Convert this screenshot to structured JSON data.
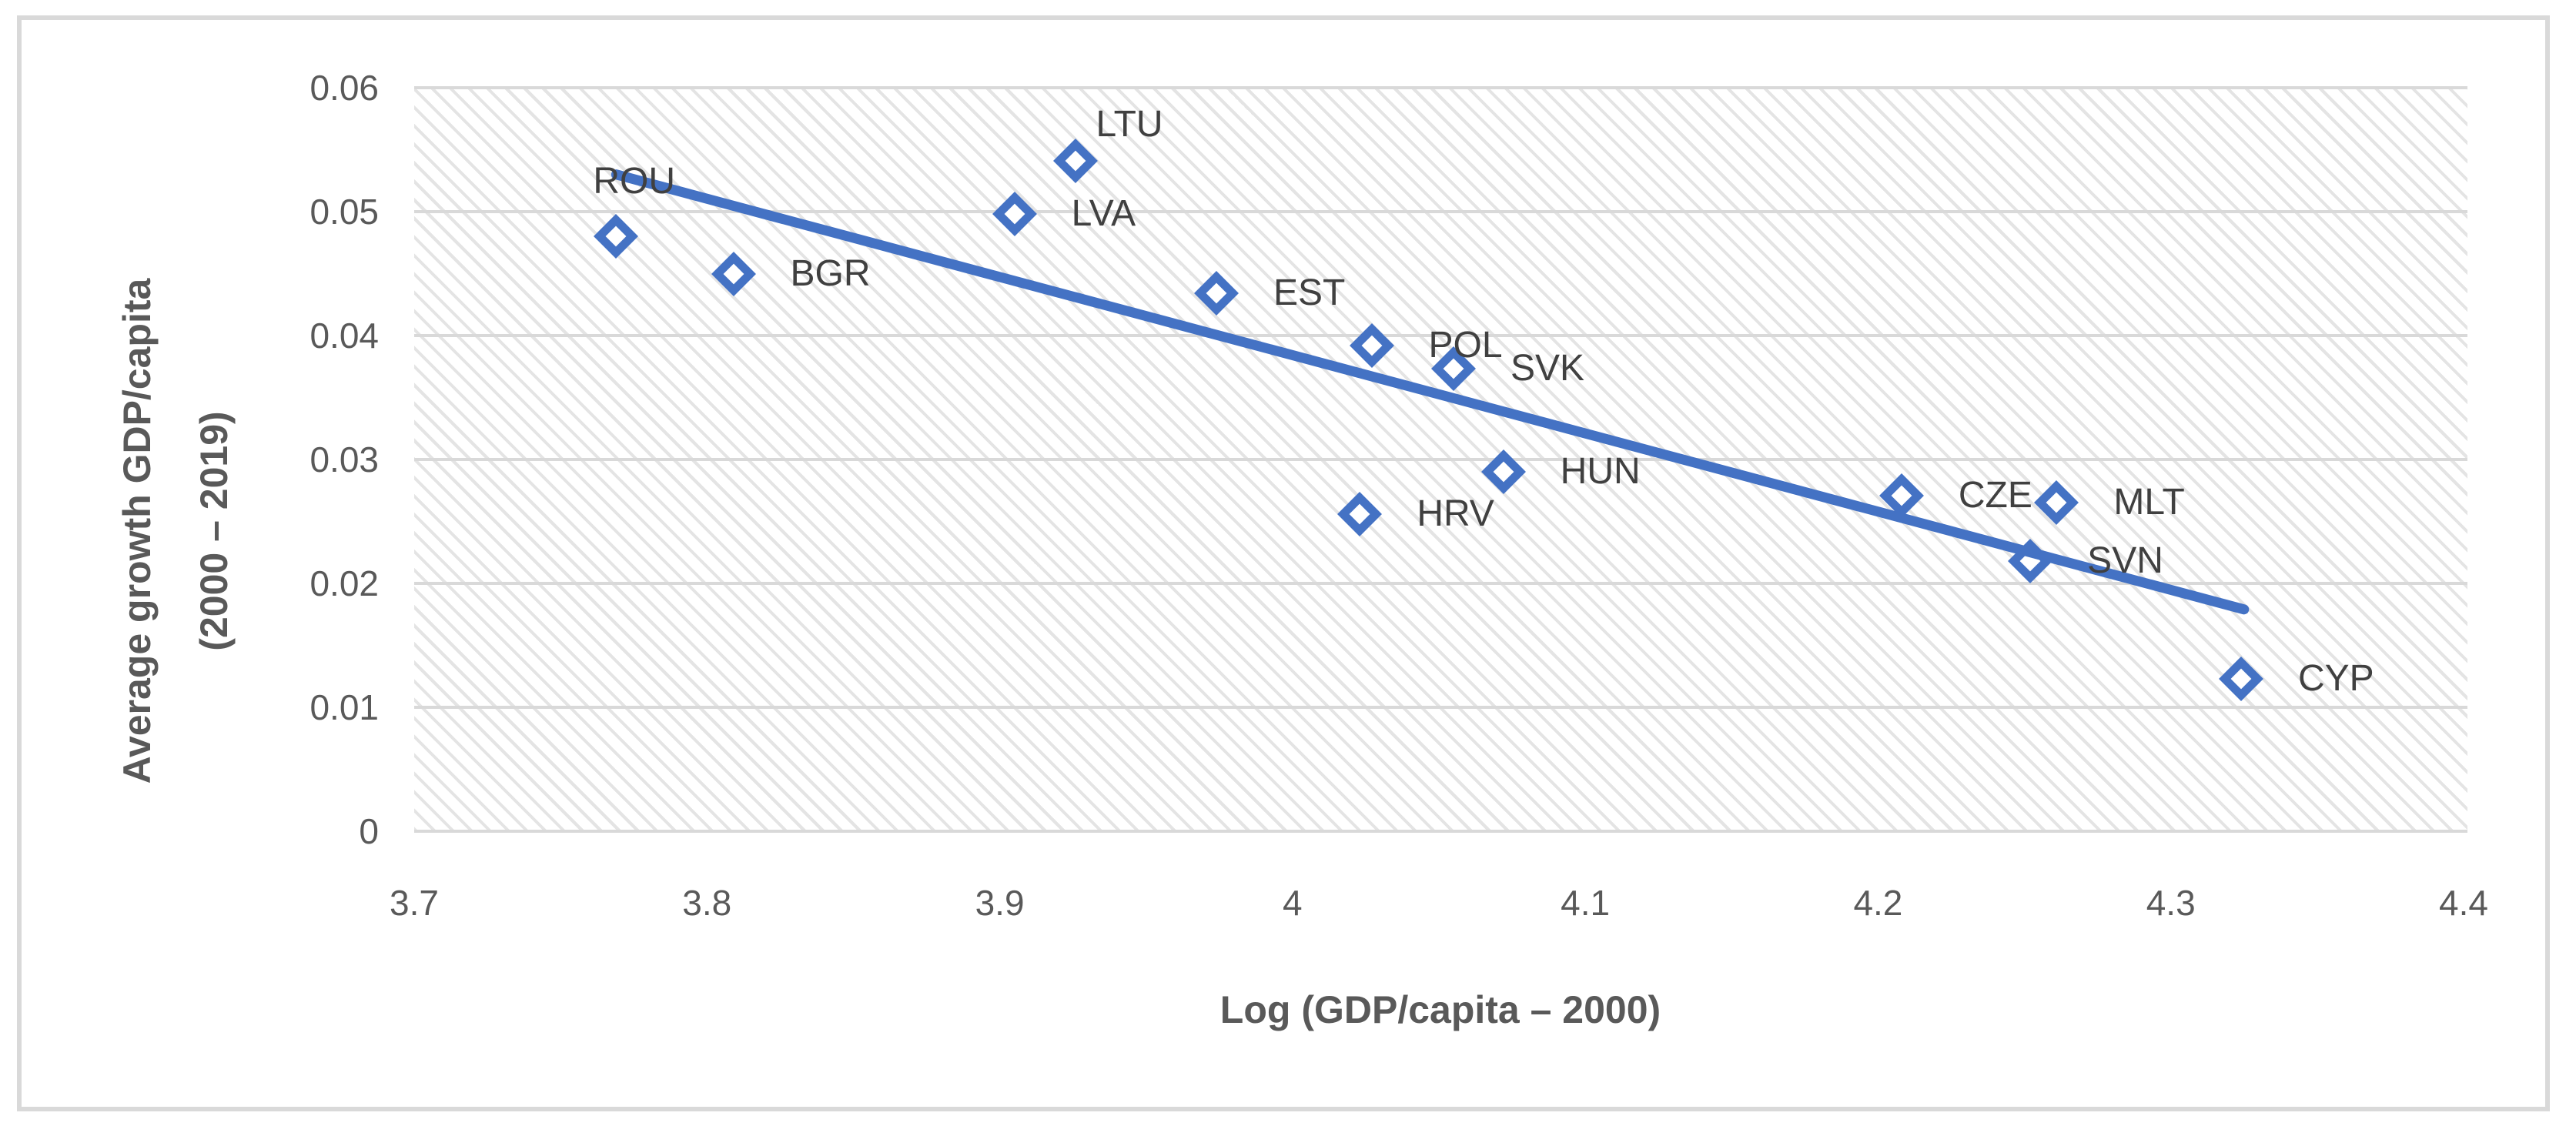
{
  "chart_data": {
    "type": "scatter",
    "title": "",
    "xlabel": "Log (GDP/capita – 2000)",
    "ylabel": "Average growth GDP/capita (2000 – 2019)",
    "ylabel_lines": [
      "Average growth GDP/capita",
      "(2000 – 2019)"
    ],
    "xlim": [
      3.7,
      4.4
    ],
    "ylim": [
      0,
      0.06
    ],
    "grid": "horizontal-only",
    "legend_position": "none",
    "plot_background": "light-downward-diagonal-hatch",
    "x_ticks": [
      {
        "value": 3.7,
        "label": "3.7"
      },
      {
        "value": 3.8,
        "label": "3.8"
      },
      {
        "value": 3.9,
        "label": "3.9"
      },
      {
        "value": 4.0,
        "label": "4"
      },
      {
        "value": 4.1,
        "label": "4.1"
      },
      {
        "value": 4.2,
        "label": "4.2"
      },
      {
        "value": 4.3,
        "label": "4.3"
      },
      {
        "value": 4.4,
        "label": "4.4"
      }
    ],
    "y_ticks": [
      {
        "value": 0.06,
        "label": "0.06"
      },
      {
        "value": 0.05,
        "label": "0.05"
      },
      {
        "value": 0.04,
        "label": "0.04"
      },
      {
        "value": 0.03,
        "label": "0.03"
      },
      {
        "value": 0.02,
        "label": "0.02"
      },
      {
        "value": 0.01,
        "label": "0.01"
      },
      {
        "value": 0,
        "label": "0"
      }
    ],
    "series": [
      {
        "name": "countries",
        "marker": "open-diamond",
        "points": [
          {
            "label": "ROU",
            "x": 3.769,
            "y": 0.048,
            "label_anchor": "above"
          },
          {
            "label": "BGR",
            "x": 3.809,
            "y": 0.045,
            "label_anchor": "right"
          },
          {
            "label": "LVA",
            "x": 3.905,
            "y": 0.0498,
            "label_anchor": "right"
          },
          {
            "label": "LTU",
            "x": 3.926,
            "y": 0.0541,
            "label_anchor": "above-right"
          },
          {
            "label": "EST",
            "x": 3.974,
            "y": 0.0434,
            "label_anchor": "right"
          },
          {
            "label": "POL",
            "x": 4.027,
            "y": 0.0392,
            "label_anchor": "right"
          },
          {
            "label": "SVK",
            "x": 4.055,
            "y": 0.0373,
            "label_anchor": "right"
          },
          {
            "label": "HUN",
            "x": 4.072,
            "y": 0.029,
            "label_anchor": "right"
          },
          {
            "label": "HRV",
            "x": 4.023,
            "y": 0.0256,
            "label_anchor": "right"
          },
          {
            "label": "CZE",
            "x": 4.208,
            "y": 0.0271,
            "label_anchor": "right"
          },
          {
            "label": "MLT",
            "x": 4.261,
            "y": 0.0265,
            "label_anchor": "right"
          },
          {
            "label": "SVN",
            "x": 4.252,
            "y": 0.0218,
            "label_anchor": "right"
          },
          {
            "label": "CYP",
            "x": 4.324,
            "y": 0.0123,
            "label_anchor": "right"
          }
        ]
      }
    ],
    "trendline": {
      "type": "linear",
      "x1": 3.769,
      "y1": 0.053,
      "x2": 4.325,
      "y2": 0.0179
    },
    "colors": {
      "marker": "#4472C4",
      "trendline": "#4472C4",
      "tick_text": "#595959",
      "axis_title_text": "#595959",
      "point_label_text": "#404040",
      "gridline": "#D9D9D9",
      "frame_border": "#D9D9D9",
      "hatch": "#CDCDCD"
    }
  }
}
